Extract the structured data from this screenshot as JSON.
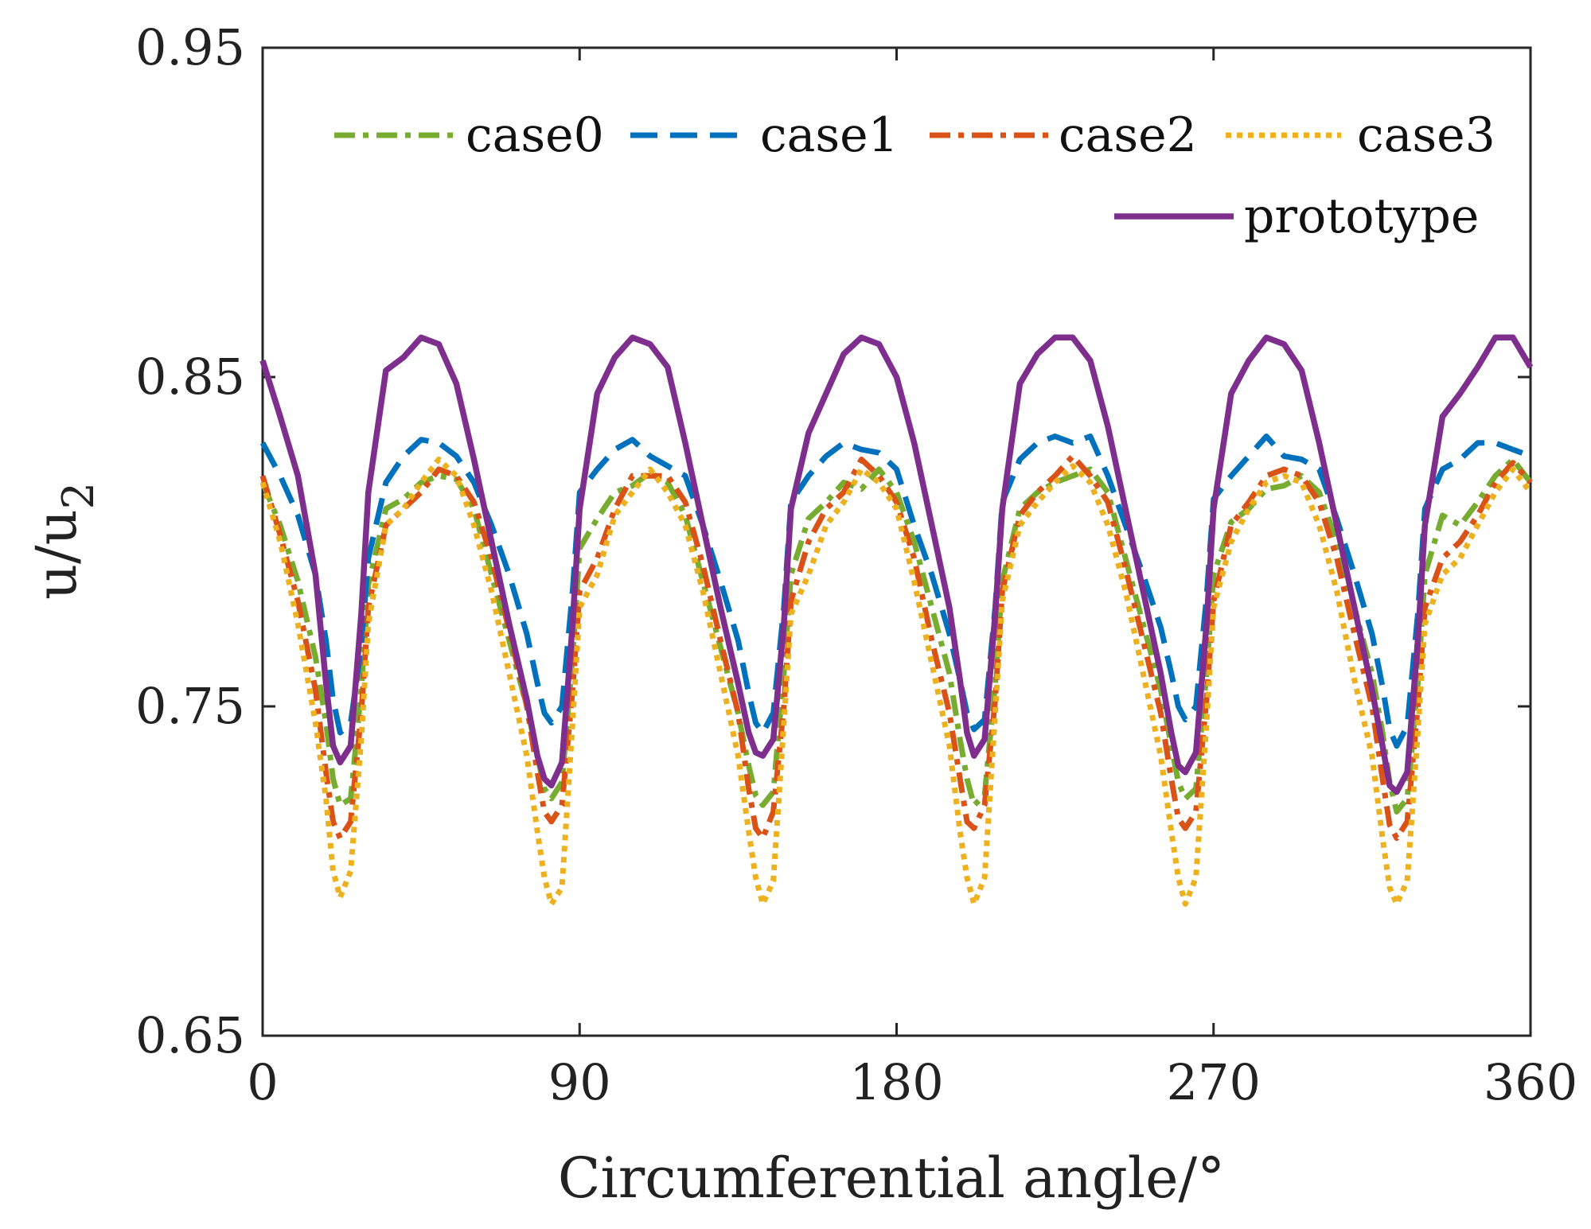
{
  "chart_data": {
    "type": "line",
    "title": "",
    "xlabel": "Circumferential angle/°",
    "ylabel": "u/u2",
    "ylabel_base": "u/u",
    "ylabel_subscript": "2",
    "xlim": [
      0,
      360
    ],
    "ylim": [
      0.65,
      0.95
    ],
    "xticks": [
      0,
      90,
      180,
      270,
      360
    ],
    "xtick_labels": [
      "0",
      "90",
      "180",
      "270",
      "360"
    ],
    "yticks": [
      0.65,
      0.75,
      0.85,
      0.95
    ],
    "ytick_labels": [
      "0.65",
      "0.75",
      "0.85",
      "0.95"
    ],
    "grid": false,
    "legend_position": "top-right",
    "x": [
      0,
      5,
      10,
      15,
      18,
      20,
      22,
      25,
      28,
      30,
      35,
      40,
      45,
      50,
      55,
      60,
      65,
      70,
      75,
      78,
      80,
      82,
      85,
      88,
      90,
      95,
      100,
      105,
      110,
      115,
      120,
      125,
      130,
      135,
      138,
      140,
      142,
      145,
      148,
      150,
      155,
      160,
      165,
      170,
      175,
      180,
      185,
      190,
      195,
      198,
      200,
      202,
      205,
      208,
      210,
      215,
      220,
      225,
      230,
      235,
      240,
      245,
      250,
      255,
      258,
      260,
      262,
      265,
      268,
      270,
      275,
      280,
      285,
      290,
      295,
      300,
      305,
      310,
      315,
      318,
      320,
      322,
      325,
      328,
      330,
      335,
      340,
      345,
      350,
      355,
      360
    ],
    "series": [
      {
        "name": "case0",
        "color": "#77AC30",
        "dash": "26 10 7 10",
        "width": 7,
        "values": [
          0.818,
          0.805,
          0.788,
          0.765,
          0.745,
          0.728,
          0.72,
          0.722,
          0.755,
          0.787,
          0.81,
          0.813,
          0.818,
          0.82,
          0.819,
          0.81,
          0.79,
          0.77,
          0.75,
          0.735,
          0.725,
          0.722,
          0.727,
          0.765,
          0.798,
          0.807,
          0.815,
          0.817,
          0.821,
          0.818,
          0.808,
          0.788,
          0.768,
          0.748,
          0.732,
          0.723,
          0.72,
          0.724,
          0.76,
          0.79,
          0.807,
          0.812,
          0.818,
          0.816,
          0.822,
          0.815,
          0.8,
          0.78,
          0.76,
          0.74,
          0.728,
          0.72,
          0.723,
          0.757,
          0.788,
          0.81,
          0.815,
          0.818,
          0.82,
          0.822,
          0.815,
          0.795,
          0.775,
          0.755,
          0.738,
          0.727,
          0.722,
          0.725,
          0.76,
          0.79,
          0.806,
          0.81,
          0.816,
          0.817,
          0.82,
          0.815,
          0.8,
          0.78,
          0.76,
          0.742,
          0.727,
          0.718,
          0.722,
          0.757,
          0.79,
          0.808,
          0.805,
          0.812,
          0.82,
          0.825,
          0.818
        ]
      },
      {
        "name": "case1",
        "color": "#0072BD",
        "dash": "34 16",
        "width": 7,
        "values": [
          0.83,
          0.82,
          0.808,
          0.79,
          0.77,
          0.752,
          0.742,
          0.745,
          0.768,
          0.795,
          0.818,
          0.826,
          0.831,
          0.83,
          0.826,
          0.818,
          0.805,
          0.79,
          0.772,
          0.757,
          0.748,
          0.745,
          0.75,
          0.785,
          0.815,
          0.822,
          0.828,
          0.831,
          0.826,
          0.823,
          0.82,
          0.805,
          0.788,
          0.77,
          0.754,
          0.745,
          0.742,
          0.748,
          0.78,
          0.812,
          0.82,
          0.826,
          0.83,
          0.828,
          0.827,
          0.822,
          0.805,
          0.79,
          0.772,
          0.758,
          0.748,
          0.743,
          0.746,
          0.78,
          0.812,
          0.825,
          0.83,
          0.832,
          0.83,
          0.832,
          0.82,
          0.805,
          0.79,
          0.774,
          0.76,
          0.75,
          0.746,
          0.75,
          0.783,
          0.813,
          0.82,
          0.826,
          0.832,
          0.826,
          0.825,
          0.822,
          0.807,
          0.79,
          0.772,
          0.756,
          0.743,
          0.738,
          0.744,
          0.778,
          0.81,
          0.822,
          0.825,
          0.83,
          0.83,
          0.828,
          0.826
        ]
      },
      {
        "name": "case2",
        "color": "#D95319",
        "dash": "26 10 7 10",
        "width": 7,
        "values": [
          0.82,
          0.802,
          0.782,
          0.755,
          0.73,
          0.715,
          0.71,
          0.715,
          0.748,
          0.78,
          0.805,
          0.81,
          0.815,
          0.822,
          0.82,
          0.812,
          0.795,
          0.773,
          0.75,
          0.73,
          0.718,
          0.715,
          0.72,
          0.755,
          0.785,
          0.795,
          0.81,
          0.82,
          0.82,
          0.82,
          0.812,
          0.793,
          0.77,
          0.748,
          0.725,
          0.713,
          0.71,
          0.718,
          0.75,
          0.782,
          0.8,
          0.81,
          0.815,
          0.825,
          0.82,
          0.812,
          0.795,
          0.77,
          0.748,
          0.728,
          0.715,
          0.713,
          0.72,
          0.752,
          0.785,
          0.808,
          0.815,
          0.82,
          0.826,
          0.82,
          0.812,
          0.792,
          0.77,
          0.748,
          0.728,
          0.716,
          0.713,
          0.718,
          0.752,
          0.782,
          0.805,
          0.812,
          0.82,
          0.822,
          0.82,
          0.812,
          0.795,
          0.772,
          0.75,
          0.728,
          0.714,
          0.71,
          0.715,
          0.75,
          0.78,
          0.795,
          0.8,
          0.808,
          0.818,
          0.824,
          0.818
        ]
      },
      {
        "name": "case3",
        "color": "#EDB120",
        "dash": "7 7",
        "width": 7,
        "values": [
          0.818,
          0.8,
          0.775,
          0.745,
          0.722,
          0.7,
          0.692,
          0.7,
          0.74,
          0.775,
          0.805,
          0.81,
          0.818,
          0.825,
          0.82,
          0.805,
          0.785,
          0.76,
          0.735,
          0.712,
          0.698,
          0.69,
          0.695,
          0.745,
          0.78,
          0.79,
          0.808,
          0.815,
          0.822,
          0.815,
          0.805,
          0.785,
          0.76,
          0.735,
          0.712,
          0.698,
          0.69,
          0.697,
          0.745,
          0.778,
          0.79,
          0.805,
          0.812,
          0.822,
          0.818,
          0.81,
          0.788,
          0.763,
          0.738,
          0.712,
          0.698,
          0.69,
          0.698,
          0.748,
          0.782,
          0.805,
          0.812,
          0.818,
          0.823,
          0.818,
          0.805,
          0.785,
          0.76,
          0.735,
          0.712,
          0.698,
          0.69,
          0.698,
          0.745,
          0.78,
          0.8,
          0.81,
          0.818,
          0.82,
          0.818,
          0.805,
          0.785,
          0.758,
          0.735,
          0.71,
          0.695,
          0.69,
          0.697,
          0.742,
          0.775,
          0.79,
          0.795,
          0.805,
          0.815,
          0.822,
          0.815
        ]
      },
      {
        "name": "prototype",
        "color": "#7E2F8E",
        "dash": "",
        "width": 7.5,
        "values": [
          0.855,
          0.838,
          0.82,
          0.79,
          0.757,
          0.738,
          0.733,
          0.738,
          0.778,
          0.815,
          0.852,
          0.856,
          0.862,
          0.86,
          0.848,
          0.825,
          0.8,
          0.775,
          0.752,
          0.735,
          0.728,
          0.726,
          0.733,
          0.775,
          0.81,
          0.845,
          0.856,
          0.862,
          0.86,
          0.853,
          0.83,
          0.805,
          0.78,
          0.757,
          0.742,
          0.736,
          0.735,
          0.74,
          0.775,
          0.81,
          0.833,
          0.845,
          0.857,
          0.862,
          0.86,
          0.85,
          0.83,
          0.805,
          0.78,
          0.758,
          0.742,
          0.735,
          0.74,
          0.778,
          0.81,
          0.848,
          0.857,
          0.862,
          0.862,
          0.855,
          0.835,
          0.81,
          0.785,
          0.76,
          0.742,
          0.732,
          0.73,
          0.736,
          0.775,
          0.81,
          0.845,
          0.855,
          0.862,
          0.86,
          0.852,
          0.83,
          0.805,
          0.78,
          0.755,
          0.738,
          0.726,
          0.724,
          0.73,
          0.77,
          0.805,
          0.838,
          0.845,
          0.853,
          0.862,
          0.862,
          0.853
        ]
      }
    ]
  }
}
